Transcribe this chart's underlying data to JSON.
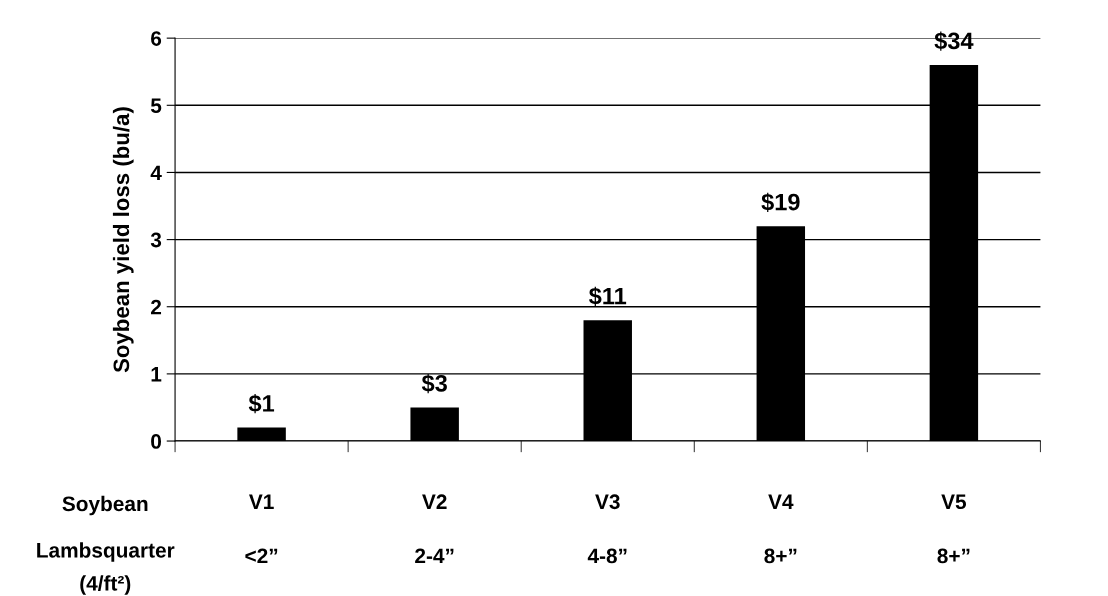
{
  "chart_data": {
    "type": "bar",
    "categories": [
      "V1\n<2”",
      "V2\n2-4”",
      "V3\n4-8”",
      "V4\n8+”",
      "V5\n8+”"
    ],
    "values": [
      0.2,
      0.5,
      1.8,
      3.2,
      5.6
    ],
    "color": "#000000",
    "ylabel": "Soybean yield loss (bu/a)",
    "ylim": [
      0,
      6
    ],
    "yticks": [
      0,
      1,
      2,
      3,
      4,
      5,
      6
    ],
    "grid": "y",
    "annotations": [
      "Soybean",
      "Lambsquarter\n(4/ft²)",
      {
        "text": "$1",
        "x": "V1\n<2”",
        "y": 0.2
      },
      {
        "text": "$3",
        "x": "V2\n2-4”",
        "y": 0.5
      },
      {
        "text": "$11",
        "x": "V3\n4-8”",
        "y": 1.8
      },
      {
        "text": "$19",
        "x": "V4\n8+”",
        "y": 3.2
      },
      {
        "text": "$34",
        "x": "V5\n8+”",
        "y": 5.6
      }
    ]
  }
}
